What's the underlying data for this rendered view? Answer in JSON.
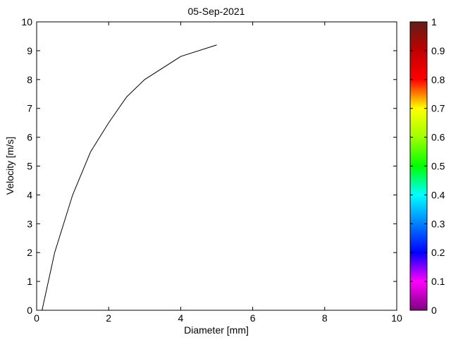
{
  "chart_data": {
    "type": "line",
    "title": "05-Sep-2021",
    "xlabel": "Diameter [mm]",
    "ylabel": "Velocity [m/s]",
    "xlim": [
      0,
      10
    ],
    "ylim": [
      0,
      10
    ],
    "xticks": [
      "0",
      "2",
      "4",
      "6",
      "8",
      "10"
    ],
    "yticks": [
      "0",
      "1",
      "2",
      "3",
      "4",
      "5",
      "6",
      "7",
      "8",
      "9",
      "10"
    ],
    "grid": false,
    "series": [
      {
        "color": "#000000",
        "x": [
          0.15,
          0.5,
          1.0,
          1.5,
          2.0,
          2.5,
          3.0,
          4.0,
          5.0
        ],
        "y": [
          0.0,
          2.0,
          4.0,
          5.5,
          6.5,
          7.4,
          8.0,
          8.8,
          9.2
        ]
      }
    ],
    "colorbar": {
      "range": [
        0,
        1
      ],
      "ticks": [
        "0",
        "0.1",
        "0.2",
        "0.3",
        "0.4",
        "0.5",
        "0.6",
        "0.7",
        "0.8",
        "0.9",
        "1"
      ],
      "colormap": [
        {
          "v": 0.0,
          "color": "#800080"
        },
        {
          "v": 0.1,
          "color": "#ff00ff"
        },
        {
          "v": 0.2,
          "color": "#0000ff"
        },
        {
          "v": 0.3,
          "color": "#0080ff"
        },
        {
          "v": 0.4,
          "color": "#00ffff"
        },
        {
          "v": 0.5,
          "color": "#00ff00"
        },
        {
          "v": 0.6,
          "color": "#a0ff00"
        },
        {
          "v": 0.7,
          "color": "#ffff00"
        },
        {
          "v": 0.8,
          "color": "#ff0000"
        },
        {
          "v": 0.9,
          "color": "#c00000"
        },
        {
          "v": 1.0,
          "color": "#602018"
        }
      ]
    }
  }
}
